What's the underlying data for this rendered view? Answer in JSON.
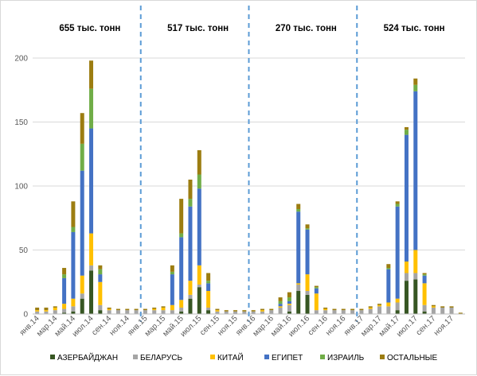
{
  "chart_data": {
    "type": "bar",
    "stacked": true,
    "title": "",
    "xlabel": "",
    "ylabel": "",
    "ylim": [
      0,
      200
    ],
    "yticks": [
      0,
      50,
      100,
      150,
      200
    ],
    "grid": true,
    "legend_position": "bottom",
    "categories": [
      "янв.14",
      "фев.14",
      "мар.14",
      "апр.14",
      "май.14",
      "июн.14",
      "июл.14",
      "авг.14",
      "сен.14",
      "окт.14",
      "ноя.14",
      "дек.14",
      "янв.15",
      "фев.15",
      "мар.15",
      "апр.15",
      "май.15",
      "июн.15",
      "июл.15",
      "авг.15",
      "сен.15",
      "окт.15",
      "ноя.15",
      "дек.15",
      "янв.16",
      "фев.16",
      "мар.16",
      "апр.16",
      "май.16",
      "июн.16",
      "июл.16",
      "авг.16",
      "сен.16",
      "окт.16",
      "ноя.16",
      "дек.16",
      "янв.17",
      "фев.17",
      "мар.17",
      "апр.17",
      "май.17",
      "июн.17",
      "июл.17",
      "авг.17",
      "сен.17",
      "окт.17",
      "ноя.17",
      "дек.17"
    ],
    "series": [
      {
        "name": "АЗЕРБАЙДЖАН",
        "color": "#375623",
        "values": [
          0,
          0,
          0,
          1,
          2,
          12,
          34,
          3,
          0,
          0,
          0,
          0,
          0,
          0,
          0,
          0,
          2,
          12,
          21,
          3,
          0,
          0,
          0,
          0,
          0,
          0,
          0,
          0,
          2,
          18,
          15,
          0,
          0,
          0,
          0,
          0,
          0,
          0,
          0,
          0,
          3,
          26,
          27,
          2,
          0,
          0,
          0,
          0
        ]
      },
      {
        "name": "БЕЛАРУСЬ",
        "color": "#a5a5a5",
        "values": [
          2,
          2,
          3,
          3,
          4,
          4,
          4,
          4,
          3,
          3,
          3,
          3,
          3,
          3,
          3,
          3,
          3,
          3,
          2,
          2,
          2,
          2,
          2,
          2,
          2,
          2,
          3,
          5,
          5,
          5,
          3,
          3,
          3,
          3,
          3,
          3,
          3,
          4,
          6,
          6,
          6,
          6,
          5,
          5,
          5,
          5,
          5,
          0
        ]
      },
      {
        "name": "КИТАЙ",
        "color": "#ffc000",
        "values": [
          1,
          1,
          2,
          4,
          6,
          14,
          25,
          18,
          1,
          0,
          0,
          0,
          0,
          1,
          2,
          4,
          6,
          11,
          15,
          13,
          1,
          0,
          0,
          0,
          0,
          1,
          0,
          1,
          1,
          1,
          13,
          13,
          1,
          0,
          0,
          0,
          0,
          1,
          1,
          3,
          3,
          9,
          18,
          17,
          1,
          0,
          0,
          0
        ]
      },
      {
        "name": "ЕГИПЕТ",
        "color": "#4472c4",
        "values": [
          0,
          0,
          0,
          20,
          52,
          82,
          82,
          6,
          0,
          0,
          0,
          0,
          0,
          0,
          0,
          24,
          49,
          58,
          60,
          6,
          0,
          0,
          0,
          0,
          0,
          0,
          0,
          2,
          2,
          56,
          35,
          4,
          0,
          0,
          0,
          0,
          0,
          0,
          0,
          26,
          72,
          99,
          124,
          6,
          0,
          0,
          0,
          0
        ]
      },
      {
        "name": "ИЗРАИЛЬ",
        "color": "#70ad47",
        "values": [
          0,
          0,
          0,
          3,
          4,
          21,
          31,
          4,
          0,
          0,
          0,
          0,
          0,
          0,
          0,
          2,
          3,
          6,
          11,
          2,
          0,
          0,
          0,
          0,
          0,
          0,
          0,
          2,
          3,
          2,
          1,
          1,
          0,
          0,
          0,
          0,
          0,
          0,
          0,
          1,
          2,
          4,
          5,
          1,
          0,
          0,
          0,
          0
        ]
      },
      {
        "name": "ОСТАЛЬНЫЕ",
        "color": "#9c7d11",
        "values": [
          2,
          2,
          1,
          5,
          20,
          24,
          22,
          3,
          1,
          1,
          1,
          1,
          1,
          1,
          1,
          5,
          27,
          15,
          19,
          6,
          1,
          1,
          1,
          1,
          1,
          1,
          1,
          3,
          4,
          4,
          3,
          1,
          1,
          1,
          1,
          1,
          1,
          1,
          1,
          3,
          2,
          2,
          5,
          1,
          1,
          1,
          1,
          1
        ]
      }
    ],
    "annotations": [
      {
        "text": "655 тыс. тонн",
        "period": "2014"
      },
      {
        "text": "517 тыс. тонн",
        "period": "2015"
      },
      {
        "text": "270 тыс. тонн",
        "period": "2016"
      },
      {
        "text": "524 тыс. тонн",
        "period": "2017"
      }
    ],
    "separator_color": "#5b9bd5"
  }
}
